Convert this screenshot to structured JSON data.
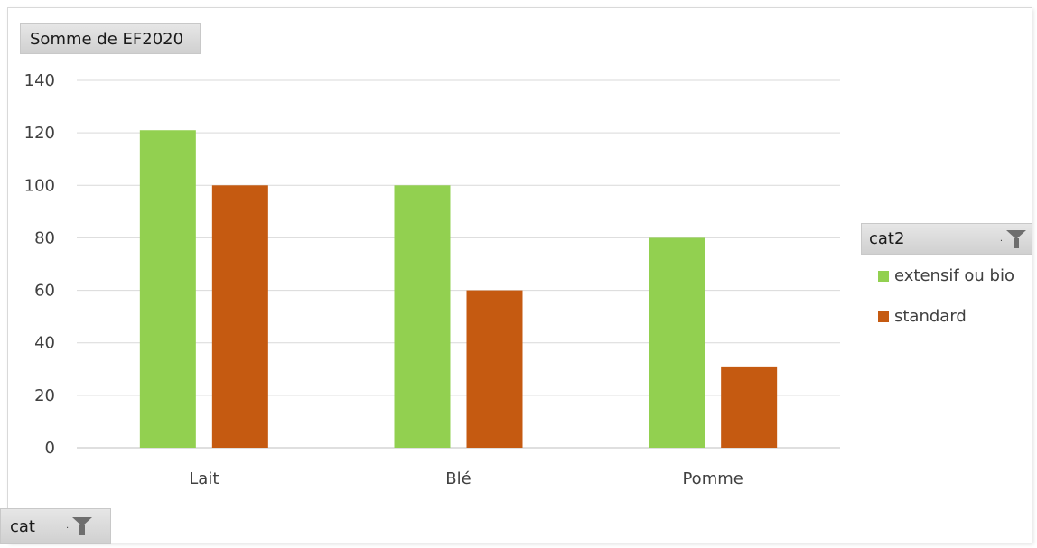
{
  "chart_data": {
    "type": "bar",
    "categories": [
      "Lait",
      "Blé",
      "Pomme"
    ],
    "series": [
      {
        "name": "extensif ou bio",
        "values": [
          121,
          100,
          80
        ],
        "color": "#92d050"
      },
      {
        "name": "standard",
        "values": [
          100,
          60,
          31
        ],
        "color": "#c55a11"
      }
    ],
    "ylim": [
      0,
      140
    ],
    "yticks": [
      0,
      20,
      40,
      60,
      80,
      100,
      120,
      140
    ],
    "grid": true,
    "legend_position": "right",
    "value_field": "Somme de EF2020",
    "legend_field": "cat2",
    "axis_field": "cat"
  }
}
